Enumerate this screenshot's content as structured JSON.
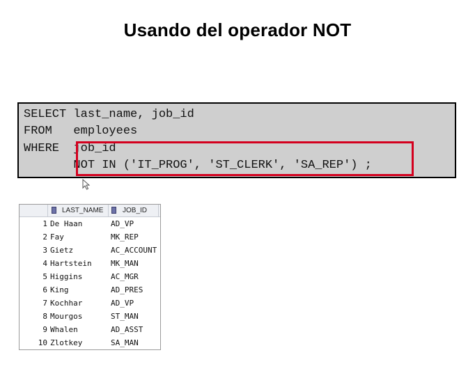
{
  "slide": {
    "title": "Usando del operador NOT"
  },
  "sql": {
    "lines": [
      "SELECT last_name, job_id",
      "FROM   employees",
      "WHERE  job_id",
      "       NOT IN ('IT_PROG', 'ST_CLERK', 'SA_REP') ;"
    ],
    "highlight_color": "#d4001e",
    "background_color": "#cfcfcf"
  },
  "results": {
    "columns": [
      "LAST_NAME",
      "JOB_ID"
    ],
    "rows": [
      {
        "num": "1",
        "last_name": "De Haan",
        "job_id": "AD_VP"
      },
      {
        "num": "2",
        "last_name": "Fay",
        "job_id": "MK_REP"
      },
      {
        "num": "3",
        "last_name": "Gietz",
        "job_id": "AC_ACCOUNT"
      },
      {
        "num": "4",
        "last_name": "Hartstein",
        "job_id": "MK_MAN"
      },
      {
        "num": "5",
        "last_name": "Higgins",
        "job_id": "AC_MGR"
      },
      {
        "num": "6",
        "last_name": "King",
        "job_id": "AD_PRES"
      },
      {
        "num": "7",
        "last_name": "Kochhar",
        "job_id": "AD_VP"
      },
      {
        "num": "8",
        "last_name": "Mourgos",
        "job_id": "ST_MAN"
      },
      {
        "num": "9",
        "last_name": "Whalen",
        "job_id": "AD_ASST"
      },
      {
        "num": "10",
        "last_name": "Zlotkey",
        "job_id": "SA_MAN"
      }
    ]
  }
}
